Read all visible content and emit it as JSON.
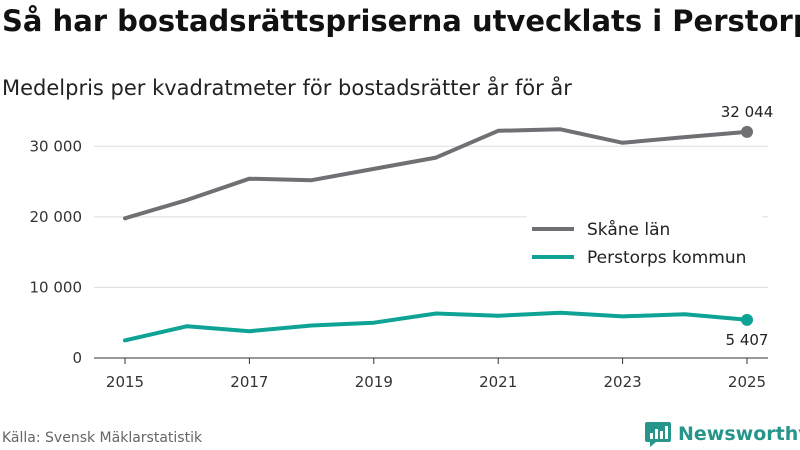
{
  "header": {
    "title": "Så har bostadsrättspriserna utvecklats i Perstorp",
    "subtitle": "Medelpris per kvadratmeter för bostadsrätter år för år"
  },
  "footer": {
    "source": "Källa: Svensk Mäklarstatistik",
    "brand": "Newsworthy"
  },
  "colors": {
    "skane": "#707074",
    "perstorp": "#0fa396",
    "grid": "#dddddd",
    "axis": "#333333",
    "brand": "#26958a"
  },
  "chart_data": {
    "type": "line",
    "title": "Så har bostadsrättspriserna utvecklats i Perstorp",
    "subtitle": "Medelpris per kvadratmeter för bostadsrätter år för år",
    "xlabel": "",
    "ylabel": "",
    "x": [
      2015,
      2016,
      2017,
      2018,
      2019,
      2020,
      2021,
      2022,
      2023,
      2024,
      2025
    ],
    "xticks": [
      2015,
      2017,
      2019,
      2021,
      2023,
      2025
    ],
    "xtick_labels": [
      "2015",
      "2017",
      "2019",
      "2021",
      "2023",
      "2025"
    ],
    "ylim": [
      0,
      35000
    ],
    "yticks": [
      0,
      10000,
      20000,
      30000
    ],
    "ytick_labels": [
      "0",
      "10 000",
      "20 000",
      "30 000"
    ],
    "grid": true,
    "legend_position": "right",
    "series": [
      {
        "name": "Skåne län",
        "color": "#707074",
        "values": [
          19800,
          22400,
          25400,
          25200,
          26800,
          28400,
          32200,
          32400,
          30500,
          31300,
          32044
        ],
        "end_label": "32 044"
      },
      {
        "name": "Perstorps kommun",
        "color": "#0fa396",
        "values": [
          2500,
          4500,
          3800,
          4600,
          5000,
          6300,
          6000,
          6400,
          5900,
          6200,
          5407
        ],
        "end_label": "5 407"
      }
    ]
  }
}
